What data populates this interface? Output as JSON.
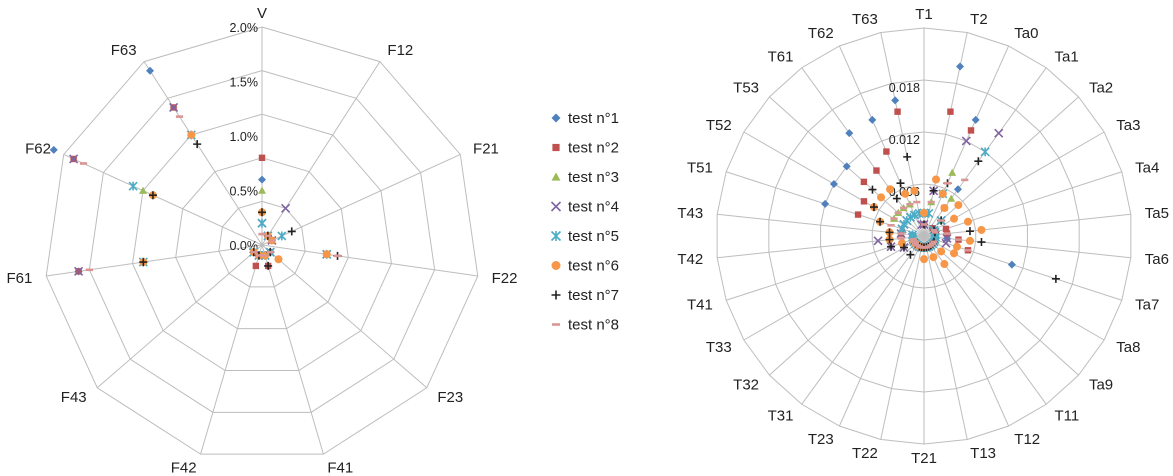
{
  "legend": [
    {
      "label": "test n°1",
      "marker": "diamond",
      "color": "#4F81BD"
    },
    {
      "label": "test n°2",
      "marker": "square",
      "color": "#C0504D"
    },
    {
      "label": "test n°3",
      "marker": "triangle",
      "color": "#9BBB59"
    },
    {
      "label": "test n°4",
      "marker": "x",
      "color": "#8064A2"
    },
    {
      "label": "test n°5",
      "marker": "star",
      "color": "#4BACC6"
    },
    {
      "label": "test n°6",
      "marker": "circle",
      "color": "#F79646"
    },
    {
      "label": "test n°7",
      "marker": "plus",
      "color": "#222222"
    },
    {
      "label": "test n°8",
      "marker": "dash",
      "color": "#D99694"
    }
  ],
  "chart_data": [
    {
      "type": "radar",
      "title": "",
      "categories": [
        "V",
        "F12",
        "F21",
        "F22",
        "F23",
        "F41",
        "F42",
        "F43",
        "F61",
        "F62",
        "F63"
      ],
      "tick_labels": [
        "0.0%",
        "0.5%",
        "1.0%",
        "1.5%",
        "2.0%"
      ],
      "rlim": [
        0,
        0.02
      ],
      "series": [
        {
          "name": "test n°1",
          "values": [
            0.006,
            0.001,
            0.001,
            0.006,
            0.001,
            0.001,
            0.001,
            0.001,
            0.017,
            0.021,
            0.019
          ]
        },
        {
          "name": "test n°2",
          "values": [
            0.008,
            0.001,
            0.001,
            0.006,
            0.001,
            0.002,
            0.002,
            0.001,
            0.017,
            0.019,
            0.015
          ]
        },
        {
          "name": "test n°3",
          "values": [
            0.005,
            0.001,
            0.001,
            0.006,
            0.001,
            0.001,
            0.001,
            0.001,
            0.011,
            0.012,
            0.012
          ]
        },
        {
          "name": "test n°4",
          "values": [
            0.002,
            0.004,
            0.001,
            0.006,
            0.001,
            0.001,
            0.001,
            0.001,
            0.017,
            0.019,
            0.015
          ]
        },
        {
          "name": "test n°5",
          "values": [
            0.002,
            0.001,
            0.002,
            0.006,
            0.001,
            0.001,
            0.001,
            0.001,
            0.011,
            0.013,
            0.012
          ]
        },
        {
          "name": "test n°6",
          "values": [
            0.003,
            0.001,
            0.001,
            0.006,
            0.002,
            0.001,
            0.001,
            0.001,
            0.011,
            0.011,
            0.012
          ]
        },
        {
          "name": "test n°7",
          "values": [
            0.003,
            0.001,
            0.003,
            0.007,
            0.001,
            0.002,
            0.001,
            0.001,
            0.011,
            0.011,
            0.011
          ]
        },
        {
          "name": "test n°8",
          "values": [
            0.001,
            0.001,
            0.001,
            0.007,
            0.001,
            0.001,
            0.001,
            0.001,
            0.016,
            0.018,
            0.014
          ]
        }
      ]
    },
    {
      "type": "radar",
      "title": "",
      "categories": [
        "T1",
        "T2",
        "Ta0",
        "Ta1",
        "Ta2",
        "Ta3",
        "Ta4",
        "Ta5",
        "Ta6",
        "Ta7",
        "Ta8",
        "Ta9",
        "T11",
        "T12",
        "T13",
        "T21",
        "T22",
        "T23",
        "T31",
        "T32",
        "T33",
        "T41",
        "T42",
        "T43",
        "T51",
        "T52",
        "T53",
        "T61",
        "T62",
        "T63"
      ],
      "tick_labels": [
        "0",
        "0.006",
        "0.012",
        "0.018"
      ],
      "rlim": [
        0,
        0.018
      ],
      "series": [
        {
          "name": "test n°1",
          "values": [
            0.001,
            0.015,
            0.011,
            0.005,
            0.001,
            0.001,
            0.001,
            0.002,
            0.002,
            0.008,
            0.001,
            0.001,
            0.001,
            0.001,
            0.001,
            0.001,
            0.001,
            0.001,
            0.001,
            0.001,
            0.001,
            0.002,
            0.001,
            0.001,
            0.009,
            0.009,
            0.009,
            0.011,
            0.011,
            0.012
          ]
        },
        {
          "name": "test n°2",
          "values": [
            0.001,
            0.011,
            0.01,
            0.003,
            0.001,
            0.001,
            0.002,
            0.002,
            0.003,
            0.004,
            0.001,
            0.001,
            0.001,
            0.001,
            0.001,
            0.001,
            0.001,
            0.001,
            0.001,
            0.001,
            0.001,
            0.001,
            0.001,
            0.002,
            0.006,
            0.006,
            0.007,
            0.007,
            0.008,
            0.011
          ]
        },
        {
          "name": "test n°3",
          "values": [
            0.002,
            0.003,
            0.006,
            0.004,
            0.002,
            0.001,
            0.001,
            0.001,
            0.001,
            0.001,
            0.001,
            0.001,
            0.001,
            0.001,
            0.001,
            0.001,
            0.001,
            0.001,
            0.001,
            0.001,
            0.001,
            0.001,
            0.001,
            0.001,
            0.002,
            0.003,
            0.003,
            0.003,
            0.003,
            0.004
          ]
        },
        {
          "name": "test n°4",
          "values": [
            0.001,
            0.004,
            0.009,
            0.011,
            0.002,
            0.001,
            0.001,
            0.001,
            0.002,
            0.002,
            0.001,
            0.001,
            0.001,
            0.001,
            0.001,
            0.001,
            0.001,
            0.001,
            0.001,
            0.001,
            0.002,
            0.003,
            0.004,
            0.002,
            0.002,
            0.002,
            0.002,
            0.002,
            0.002,
            0.001
          ]
        },
        {
          "name": "test n°5",
          "values": [
            0.002,
            0.002,
            0.004,
            0.009,
            0.002,
            0.001,
            0.001,
            0.001,
            0.001,
            0.001,
            0.001,
            0.001,
            0.001,
            0.001,
            0.001,
            0.001,
            0.001,
            0.001,
            0.001,
            0.001,
            0.001,
            0.001,
            0.001,
            0.001,
            0.002,
            0.002,
            0.002,
            0.002,
            0.002,
            0.002
          ]
        },
        {
          "name": "test n°6",
          "values": [
            0.002,
            0.005,
            0.004,
            0.003,
            0.004,
            0.003,
            0.004,
            0.005,
            0.004,
            0.003,
            0.003,
            0.002,
            0.003,
            0.002,
            0.001,
            0.002,
            0.001,
            0.001,
            0.001,
            0.001,
            0.001,
            0.002,
            0.003,
            0.003,
            0.004,
            0.005,
            0.005,
            0.005,
            0.004,
            0.004
          ]
        },
        {
          "name": "test n°7",
          "values": [
            0.001,
            0.004,
            0.005,
            0.008,
            0.002,
            0.001,
            0.001,
            0.004,
            0.005,
            0.012,
            0.001,
            0.001,
            0.001,
            0.001,
            0.001,
            0.001,
            0.001,
            0.001,
            0.002,
            0.001,
            0.002,
            0.003,
            0.003,
            0.003,
            0.004,
            0.005,
            0.006,
            0.004,
            0.005,
            0.007
          ]
        },
        {
          "name": "test n°8",
          "values": [
            0.001,
            0.003,
            0.005,
            0.006,
            0.002,
            0.001,
            0.001,
            0.002,
            0.003,
            0.004,
            0.001,
            0.001,
            0.001,
            0.001,
            0.001,
            0.001,
            0.001,
            0.001,
            0.001,
            0.001,
            0.001,
            0.001,
            0.002,
            0.002,
            0.003,
            0.003,
            0.003,
            0.003,
            0.003,
            0.003
          ]
        }
      ]
    }
  ]
}
